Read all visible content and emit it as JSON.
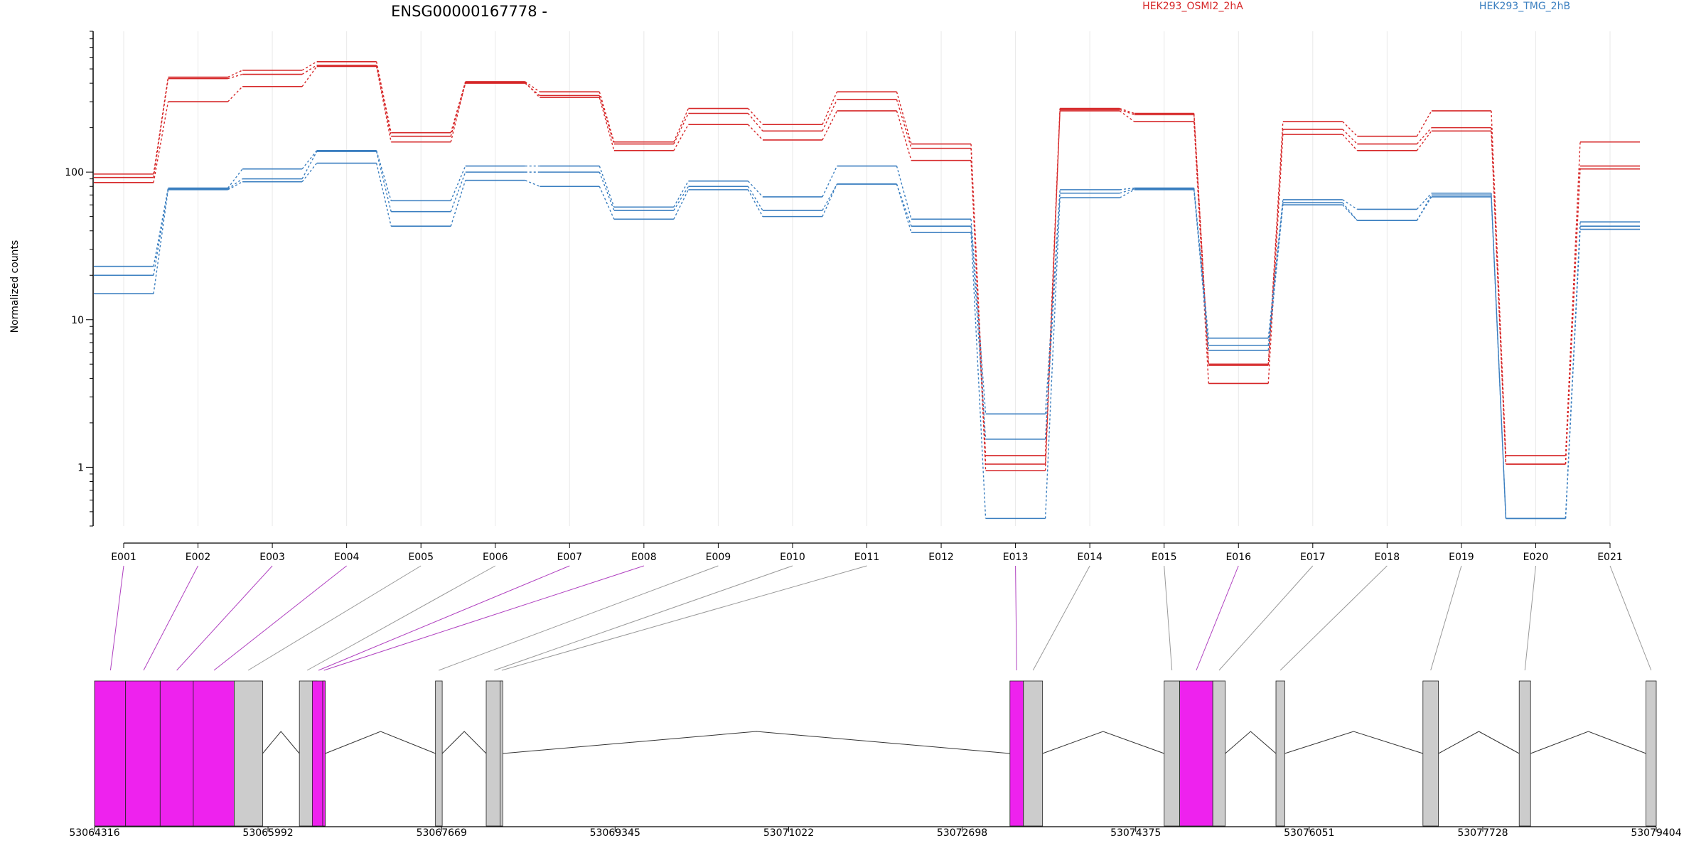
{
  "chart_data": {
    "type": "line",
    "title": "ENSG00000167778 -",
    "ylabel": "Normalized counts",
    "yscale": "log",
    "ylim": [
      0.4,
      900
    ],
    "yticks": [
      1,
      10,
      100
    ],
    "yticklabels": [
      "1",
      "10",
      "100"
    ],
    "categories": [
      "E001",
      "E002",
      "E003",
      "E004",
      "E005",
      "E006",
      "E007",
      "E008",
      "E009",
      "E010",
      "E011",
      "E012",
      "E013",
      "E014",
      "E015",
      "E016",
      "E017",
      "E018",
      "E019",
      "E020",
      "E021"
    ],
    "legend": [
      {
        "label": "HEK293_OSMI2_2hA",
        "color": "#d62728"
      },
      {
        "label": "HEK293_TMG_2hB",
        "color": "#3b7fc0"
      }
    ],
    "series": [
      {
        "group": "HEK293_OSMI2_2hA",
        "color": "#d62728",
        "values": [
          97,
          440,
          490,
          560,
          185,
          410,
          350,
          160,
          270,
          210,
          350,
          155,
          1.2,
          270,
          250,
          5,
          220,
          175,
          260,
          1.2,
          160
        ]
      },
      {
        "group": "HEK293_OSMI2_2hA",
        "color": "#d62728",
        "values": [
          92,
          430,
          460,
          530,
          175,
          400,
          330,
          155,
          250,
          190,
          310,
          145,
          1.05,
          265,
          245,
          4.9,
          195,
          155,
          200,
          1.05,
          110
        ]
      },
      {
        "group": "HEK293_OSMI2_2hA",
        "color": "#d62728",
        "values": [
          85,
          300,
          380,
          520,
          160,
          405,
          320,
          140,
          210,
          165,
          260,
          120,
          0.95,
          260,
          220,
          3.7,
          180,
          140,
          190,
          1.05,
          105
        ]
      },
      {
        "group": "HEK293_TMG_2hB",
        "color": "#3b7fc0",
        "values": [
          23,
          78,
          105,
          140,
          64,
          110,
          110,
          58,
          87,
          68,
          110,
          48,
          2.3,
          76,
          78,
          7.5,
          65,
          56,
          72,
          0.45,
          46
        ]
      },
      {
        "group": "HEK293_TMG_2hB",
        "color": "#3b7fc0",
        "values": [
          20,
          77,
          90,
          138,
          54,
          100,
          100,
          55,
          80,
          55,
          83,
          43,
          1.55,
          72,
          77,
          6.7,
          62,
          47,
          70,
          0.45,
          43
        ]
      },
      {
        "group": "HEK293_TMG_2hB",
        "color": "#3b7fc0",
        "values": [
          15,
          76,
          86,
          115,
          43,
          88,
          80,
          48,
          76,
          50,
          83,
          39,
          0.45,
          67,
          76,
          6.2,
          60,
          47,
          68,
          0.45,
          41
        ]
      }
    ],
    "genome_axis": {
      "range": [
        53064316,
        53079404
      ],
      "ticks": [
        "53064316",
        "53065992",
        "53067669",
        "53069345",
        "53071022",
        "53072698",
        "53074375",
        "53076051",
        "53077728",
        "53079404"
      ]
    },
    "exon_model": [
      {
        "start": 53064316,
        "end": 53064616,
        "highlight": true,
        "bin": "E001"
      },
      {
        "start": 53064616,
        "end": 53064950,
        "highlight": true,
        "bin": "E002"
      },
      {
        "start": 53064950,
        "end": 53065270,
        "highlight": true,
        "bin": "E003"
      },
      {
        "start": 53065270,
        "end": 53065665,
        "highlight": true,
        "bin": "E004"
      },
      {
        "start": 53065665,
        "end": 53065940,
        "highlight": false,
        "bin": "E005"
      },
      {
        "start": 53066295,
        "end": 53066465,
        "highlight": false,
        "bin": "E006"
      },
      {
        "start": 53066420,
        "end": 53066540,
        "highlight": true,
        "bin": "E007"
      },
      {
        "start": 53066520,
        "end": 53066545,
        "highlight": true,
        "bin": "E008"
      },
      {
        "start": 53067610,
        "end": 53067675,
        "highlight": false,
        "bin": "E009"
      },
      {
        "start": 53068100,
        "end": 53068255,
        "highlight": false,
        "bin": "E010"
      },
      {
        "start": 53068235,
        "end": 53068260,
        "highlight": false,
        "bin": "E011"
      },
      {
        "start": 53073160,
        "end": 53073290,
        "highlight": true,
        "bin": "E013"
      },
      {
        "start": 53073290,
        "end": 53073475,
        "highlight": false,
        "bin": "E014"
      },
      {
        "start": 53074650,
        "end": 53074800,
        "highlight": false,
        "bin": "E015"
      },
      {
        "start": 53074800,
        "end": 53075120,
        "highlight": true,
        "bin": "E016"
      },
      {
        "start": 53075120,
        "end": 53075240,
        "highlight": false,
        "bin": "E017"
      },
      {
        "start": 53075730,
        "end": 53075815,
        "highlight": false,
        "bin": "E018"
      },
      {
        "start": 53077150,
        "end": 53077300,
        "highlight": false,
        "bin": "E019"
      },
      {
        "start": 53078080,
        "end": 53078190,
        "highlight": false,
        "bin": "E020"
      },
      {
        "start": 53079305,
        "end": 53079404,
        "highlight": false,
        "bin": "E021"
      }
    ],
    "connector_positions": [
      53064470,
      53064790,
      53065110,
      53065470,
      53065800,
      53066370,
      53066480,
      53066532,
      53067642,
      53068178,
      53068250,
      53073225,
      53073383,
      53074725,
      53074960,
      53075180,
      53075772,
      53077225,
      53078135,
      53079355
    ],
    "introns": [
      {
        "start": 53065940,
        "end": 53066295,
        "peak": 53066117
      },
      {
        "start": 53066465,
        "end": 53066420,
        "peak": 53066442
      },
      {
        "start": 53066545,
        "end": 53067610,
        "peak": 53067080
      },
      {
        "start": 53067675,
        "end": 53068100,
        "peak": 53067888
      },
      {
        "start": 53068260,
        "end": 53073160,
        "peak": 53070710
      },
      {
        "start": 53073475,
        "end": 53074650,
        "peak": 53074060
      },
      {
        "start": 53075240,
        "end": 53075730,
        "peak": 53075485
      },
      {
        "start": 53075815,
        "end": 53077150,
        "peak": 53076480
      },
      {
        "start": 53077300,
        "end": 53078080,
        "peak": 53077690
      },
      {
        "start": 53078190,
        "end": 53079305,
        "peak": 53078748
      }
    ],
    "colors": {
      "highlight_exon": "#ee22ee",
      "normal_exon": "#cccccc",
      "highlight_link": "#b040c0",
      "normal_link": "#999999"
    }
  }
}
